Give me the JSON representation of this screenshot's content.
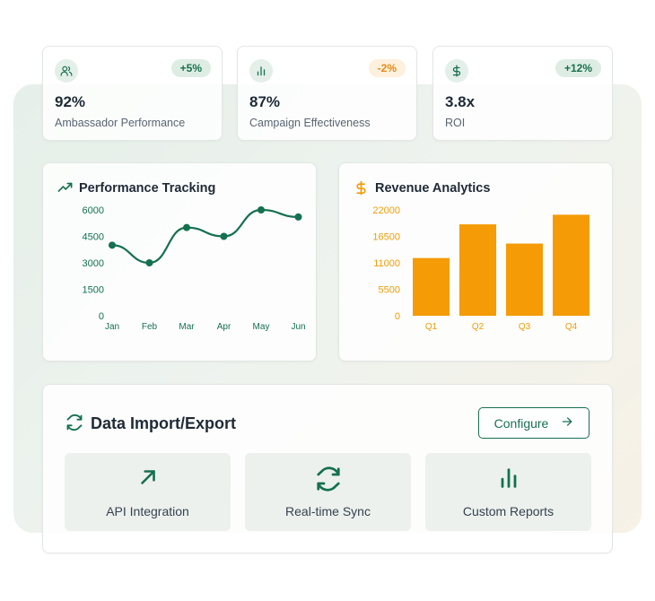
{
  "stats": [
    {
      "icon": "users-icon",
      "badge": "+5%",
      "trend": "pos",
      "value": "92%",
      "label": "Ambassador Performance"
    },
    {
      "icon": "bar-chart-icon",
      "badge": "-2%",
      "trend": "neg",
      "value": "87%",
      "label": "Campaign Effectiveness"
    },
    {
      "icon": "dollar-icon",
      "badge": "+12%",
      "trend": "pos",
      "value": "3.8x",
      "label": "ROI"
    }
  ],
  "performance": {
    "title": "Performance Tracking",
    "icon": "trending-up-icon",
    "color": "#14704f"
  },
  "revenue": {
    "title": "Revenue Analytics",
    "icon": "dollar-sign-icon",
    "color": "#f59b06"
  },
  "chart_data": [
    {
      "type": "line",
      "title": "Performance Tracking",
      "categories": [
        "Jan",
        "Feb",
        "Mar",
        "Apr",
        "May",
        "Jun"
      ],
      "values": [
        4000,
        3000,
        5000,
        4500,
        6000,
        5600
      ],
      "yticks": [
        "6000",
        "4500",
        "3000",
        "1500",
        "0"
      ],
      "ylim": [
        0,
        6000
      ],
      "grid": false
    },
    {
      "type": "bar",
      "title": "Revenue Analytics",
      "categories": [
        "Q1",
        "Q2",
        "Q3",
        "Q4"
      ],
      "values": [
        12000,
        19000,
        15000,
        21000
      ],
      "yticks": [
        "22000",
        "16500",
        "11000",
        "5500",
        "0"
      ],
      "ylim": [
        0,
        22000
      ],
      "grid": false
    }
  ],
  "data_panel": {
    "title": "Data Import/Export",
    "icon": "refresh-icon",
    "configure_label": "Configure",
    "tiles": [
      {
        "icon": "arrow-up-right-icon",
        "label": "API Integration"
      },
      {
        "icon": "refresh-icon",
        "label": "Real-time Sync"
      },
      {
        "icon": "bar-chart-icon",
        "label": "Custom Reports"
      }
    ]
  }
}
